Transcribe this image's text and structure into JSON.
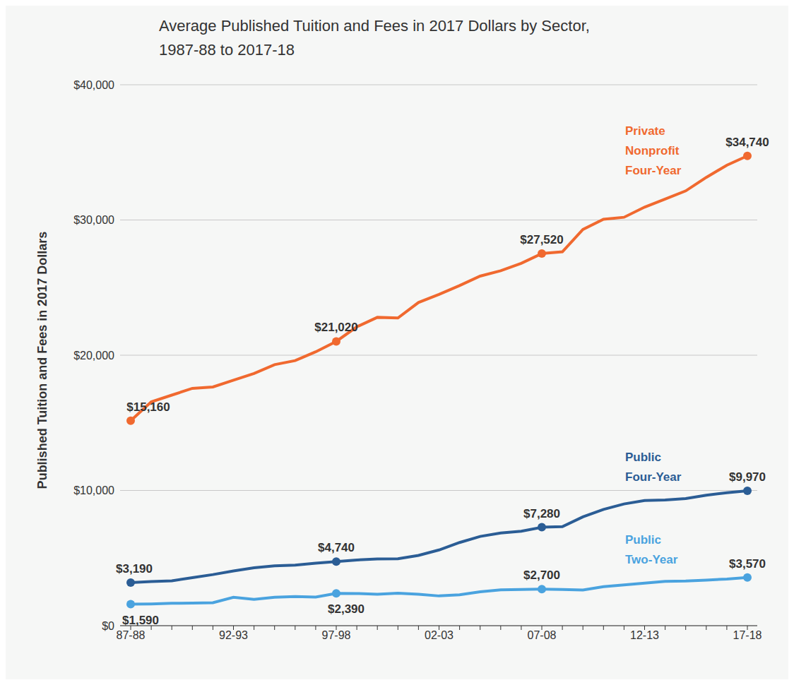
{
  "chart_data": {
    "type": "line",
    "title": "Average Published Tuition and Fees in 2017 Dollars by Sector, 1987-88 to 2017-18",
    "y_label": "Published Tuition and Fees in 2017 Dollars",
    "categories": [
      "87-88",
      null,
      null,
      null,
      null,
      "92-93",
      null,
      null,
      null,
      null,
      "97-98",
      null,
      null,
      null,
      null,
      "02-03",
      null,
      null,
      null,
      null,
      "07-08",
      null,
      null,
      null,
      null,
      "12-13",
      null,
      null,
      null,
      null,
      "17-18"
    ],
    "series": [
      {
        "name": "Private Nonprofit Four-Year",
        "color": "#f0692f",
        "values": [
          15160,
          16550,
          17050,
          17550,
          17650,
          18150,
          18650,
          19300,
          19600,
          20250,
          21020,
          22100,
          22800,
          22750,
          23900,
          24500,
          25150,
          25850,
          26250,
          26800,
          27520,
          27650,
          29300,
          30050,
          30200,
          30950,
          31550,
          32150,
          33150,
          34050,
          34740
        ],
        "value_labels": [
          "$15,160",
          null,
          null,
          null,
          null,
          null,
          null,
          null,
          null,
          null,
          "$21,020",
          null,
          null,
          null,
          null,
          null,
          null,
          null,
          null,
          null,
          "$27,520",
          null,
          null,
          null,
          null,
          null,
          null,
          null,
          null,
          null,
          "$34,740"
        ]
      },
      {
        "name": "Public Four-Year",
        "color": "#2b5d95",
        "values": [
          3190,
          3260,
          3320,
          3550,
          3780,
          4050,
          4280,
          4430,
          4480,
          4620,
          4740,
          4860,
          4930,
          4950,
          5200,
          5600,
          6150,
          6600,
          6850,
          6980,
          7280,
          7320,
          8050,
          8600,
          9000,
          9250,
          9300,
          9400,
          9650,
          9830,
          9970
        ],
        "value_labels": [
          "$3,190",
          null,
          null,
          null,
          null,
          null,
          null,
          null,
          null,
          null,
          "$4,740",
          null,
          null,
          null,
          null,
          null,
          null,
          null,
          null,
          null,
          "$7,280",
          null,
          null,
          null,
          null,
          null,
          null,
          null,
          null,
          null,
          "$9,970"
        ]
      },
      {
        "name": "Public Two-Year",
        "color": "#4aa3df",
        "values": [
          1590,
          1610,
          1660,
          1670,
          1700,
          2100,
          1940,
          2100,
          2150,
          2120,
          2390,
          2380,
          2330,
          2400,
          2320,
          2200,
          2280,
          2510,
          2650,
          2680,
          2700,
          2680,
          2640,
          2890,
          3020,
          3150,
          3280,
          3300,
          3370,
          3450,
          3570
        ],
        "value_labels": [
          "$1,590",
          null,
          null,
          null,
          null,
          null,
          null,
          null,
          null,
          null,
          "$2,390",
          null,
          null,
          null,
          null,
          null,
          null,
          null,
          null,
          null,
          "$2,700",
          null,
          null,
          null,
          null,
          null,
          null,
          null,
          null,
          null,
          "$3,570"
        ]
      }
    ],
    "ylim": [
      0,
      40000
    ],
    "yticks": [
      {
        "value": 0,
        "label": "$0"
      },
      {
        "value": 10000,
        "label": "$10,000"
      },
      {
        "value": 20000,
        "label": "$20,000"
      },
      {
        "value": 30000,
        "label": "$30,000"
      },
      {
        "value": 40000,
        "label": "$40,000"
      }
    ],
    "grid": true
  }
}
